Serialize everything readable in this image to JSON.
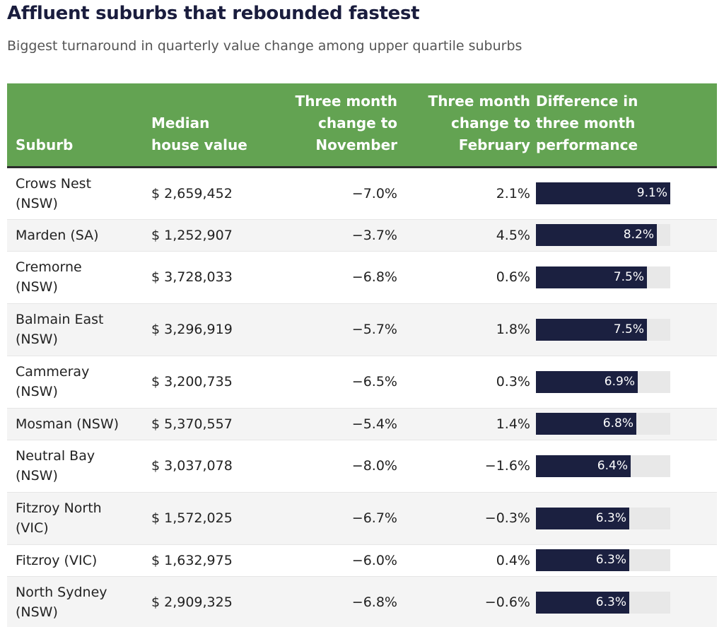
{
  "title": "Affluent suburbs that rebounded fastest",
  "subtitle": "Biggest turnaround in quarterly value change among upper quartile suburbs",
  "colors": {
    "header_bg": "#63a352",
    "bar_fill": "#1b2040",
    "bar_track": "#e8e8e8",
    "title": "#1a1d3e"
  },
  "chart_data": {
    "type": "table",
    "columns": [
      "Suburb",
      "Median\nhouse value",
      "Three month\nchange to\nNovember",
      "Three month\nchange to\nFebruary",
      "Difference in\nthree month\nperformance"
    ],
    "bar_max": 9.1,
    "rows": [
      {
        "suburb": "Crows Nest\n(NSW)",
        "median": "$ 2,659,452",
        "nov": "−7.0%",
        "feb": "2.1%",
        "diff_label": "9.1%",
        "diff": 9.1
      },
      {
        "suburb": "Marden (SA)",
        "median": "$ 1,252,907",
        "nov": "−3.7%",
        "feb": "4.5%",
        "diff_label": "8.2%",
        "diff": 8.2
      },
      {
        "suburb": "Cremorne\n(NSW)",
        "median": "$ 3,728,033",
        "nov": "−6.8%",
        "feb": "0.6%",
        "diff_label": "7.5%",
        "diff": 7.5
      },
      {
        "suburb": "Balmain East\n(NSW)",
        "median": "$ 3,296,919",
        "nov": "−5.7%",
        "feb": "1.8%",
        "diff_label": "7.5%",
        "diff": 7.5
      },
      {
        "suburb": "Cammeray\n(NSW)",
        "median": "$ 3,200,735",
        "nov": "−6.5%",
        "feb": "0.3%",
        "diff_label": "6.9%",
        "diff": 6.9
      },
      {
        "suburb": "Mosman (NSW)",
        "median": "$ 5,370,557",
        "nov": "−5.4%",
        "feb": "1.4%",
        "diff_label": "6.8%",
        "diff": 6.8
      },
      {
        "suburb": "Neutral Bay\n(NSW)",
        "median": "$ 3,037,078",
        "nov": "−8.0%",
        "feb": "−1.6%",
        "diff_label": "6.4%",
        "diff": 6.4
      },
      {
        "suburb": "Fitzroy North\n(VIC)",
        "median": "$ 1,572,025",
        "nov": "−6.7%",
        "feb": "−0.3%",
        "diff_label": "6.3%",
        "diff": 6.3
      },
      {
        "suburb": "Fitzroy (VIC)",
        "median": "$ 1,632,975",
        "nov": "−6.0%",
        "feb": "0.4%",
        "diff_label": "6.3%",
        "diff": 6.3
      },
      {
        "suburb": "North Sydney\n(NSW)",
        "median": "$ 2,909,325",
        "nov": "−6.8%",
        "feb": "−0.6%",
        "diff_label": "6.3%",
        "diff": 6.3
      }
    ]
  }
}
